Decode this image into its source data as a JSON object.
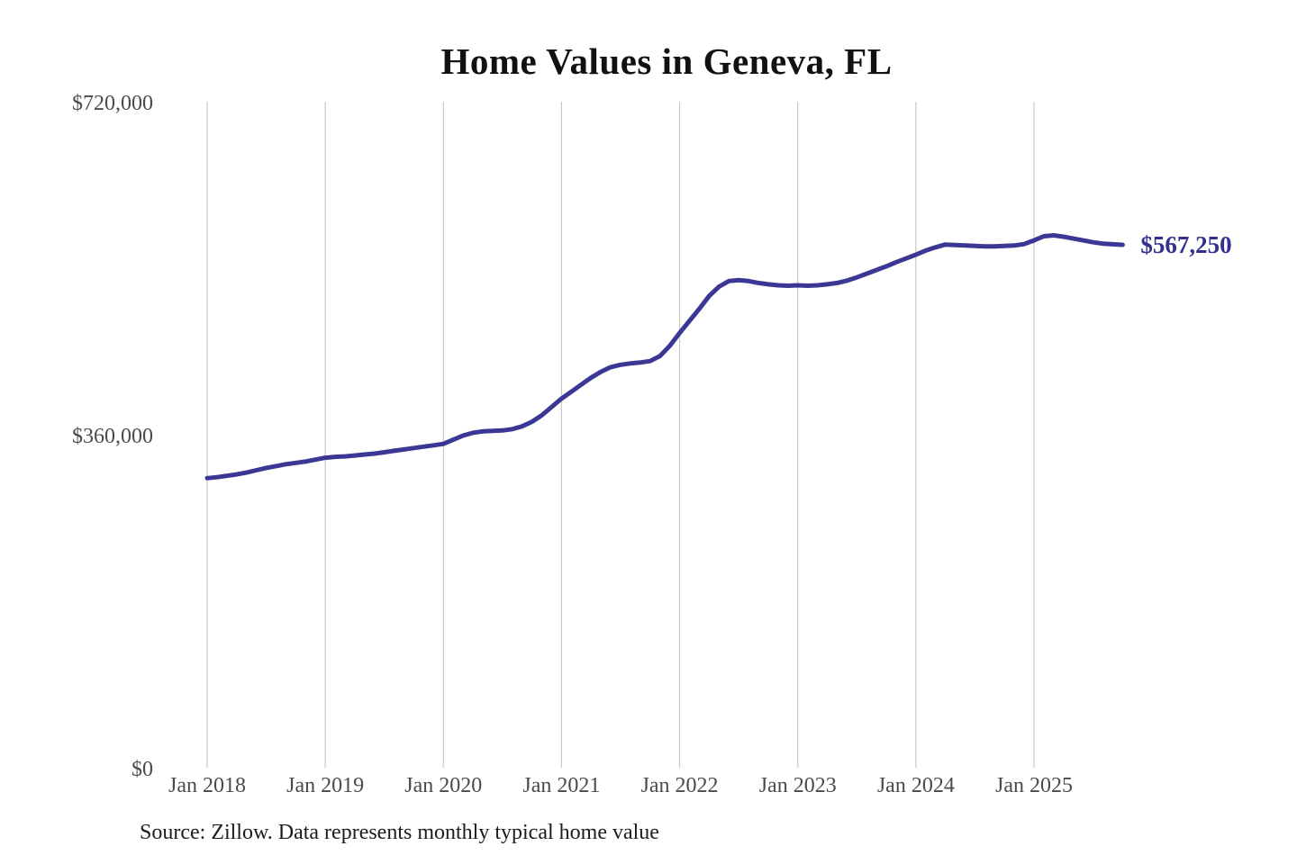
{
  "chart": {
    "title": "Home Values in Geneva, FL",
    "end_label": "$567,250",
    "source": "Source: Zillow. Data represents monthly typical home value"
  },
  "chart_data": {
    "type": "line",
    "title": "Home Values in Geneva, FL",
    "series_name": "Monthly typical home value",
    "x": [
      "Jan 2018",
      "Feb 2018",
      "Mar 2018",
      "Apr 2018",
      "May 2018",
      "Jun 2018",
      "Jul 2018",
      "Aug 2018",
      "Sep 2018",
      "Oct 2018",
      "Nov 2018",
      "Dec 2018",
      "Jan 2019",
      "Feb 2019",
      "Mar 2019",
      "Apr 2019",
      "May 2019",
      "Jun 2019",
      "Jul 2019",
      "Aug 2019",
      "Sep 2019",
      "Oct 2019",
      "Nov 2019",
      "Dec 2019",
      "Jan 2020",
      "Feb 2020",
      "Mar 2020",
      "Apr 2020",
      "May 2020",
      "Jun 2020",
      "Jul 2020",
      "Aug 2020",
      "Sep 2020",
      "Oct 2020",
      "Nov 2020",
      "Dec 2020",
      "Jan 2021",
      "Feb 2021",
      "Mar 2021",
      "Apr 2021",
      "May 2021",
      "Jun 2021",
      "Jul 2021",
      "Aug 2021",
      "Sep 2021",
      "Oct 2021",
      "Nov 2021",
      "Dec 2021",
      "Jan 2022",
      "Feb 2022",
      "Mar 2022",
      "Apr 2022",
      "May 2022",
      "Jun 2022",
      "Jul 2022",
      "Aug 2022",
      "Sep 2022",
      "Oct 2022",
      "Nov 2022",
      "Dec 2022",
      "Jan 2023",
      "Feb 2023",
      "Mar 2023",
      "Apr 2023",
      "May 2023",
      "Jun 2023",
      "Jul 2023",
      "Aug 2023",
      "Sep 2023",
      "Oct 2023",
      "Nov 2023",
      "Dec 2023",
      "Jan 2024",
      "Feb 2024",
      "Mar 2024",
      "Apr 2024",
      "May 2024",
      "Jun 2024",
      "Jul 2024",
      "Aug 2024",
      "Sep 2024",
      "Oct 2024",
      "Nov 2024",
      "Dec 2024",
      "Jan 2025",
      "Feb 2025",
      "Mar 2025",
      "Apr 2025",
      "May 2025",
      "Jun 2025",
      "Jul 2025",
      "Aug 2025",
      "Sep 2025",
      "Oct 2025"
    ],
    "values": [
      315000,
      316000,
      317500,
      319000,
      321000,
      323500,
      326000,
      328000,
      330000,
      331500,
      333000,
      335000,
      337000,
      338000,
      338500,
      339500,
      340500,
      341500,
      343000,
      344500,
      346000,
      347500,
      349000,
      350500,
      352000,
      356500,
      361000,
      364000,
      365500,
      366000,
      366500,
      368000,
      371000,
      376000,
      383000,
      392000,
      401000,
      408500,
      416000,
      423500,
      430000,
      435000,
      437500,
      439000,
      440000,
      441500,
      447000,
      458000,
      472000,
      485000,
      498000,
      512000,
      522000,
      528000,
      529000,
      528000,
      526000,
      524500,
      523500,
      523000,
      523500,
      523000,
      523500,
      524500,
      526000,
      528500,
      532000,
      536000,
      540000,
      544000,
      548500,
      552500,
      556500,
      561000,
      564500,
      567500,
      567000,
      566500,
      566000,
      565500,
      565500,
      566000,
      566500,
      568000,
      572000,
      576500,
      577500,
      576000,
      574000,
      572000,
      570000,
      568500,
      567800,
      567250
    ],
    "end_value": 567250,
    "end_label": "$567,250",
    "y_ticks": [
      {
        "label": "$0",
        "value": 0
      },
      {
        "label": "$360,000",
        "value": 360000
      },
      {
        "label": "$720,000",
        "value": 720000
      }
    ],
    "x_ticks": [
      "Jan 2018",
      "Jan 2019",
      "Jan 2020",
      "Jan 2021",
      "Jan 2022",
      "Jan 2023",
      "Jan 2024",
      "Jan 2025"
    ],
    "ylim": [
      0,
      720000
    ],
    "grid": "vertical-only",
    "legend": "none",
    "line_color": "#3b3794",
    "end_label_color": "#34308e",
    "gridline_color": "#c9c9c9",
    "axis_label_color": "#4a4a4a",
    "source": "Source: Zillow. Data represents monthly typical home value"
  }
}
